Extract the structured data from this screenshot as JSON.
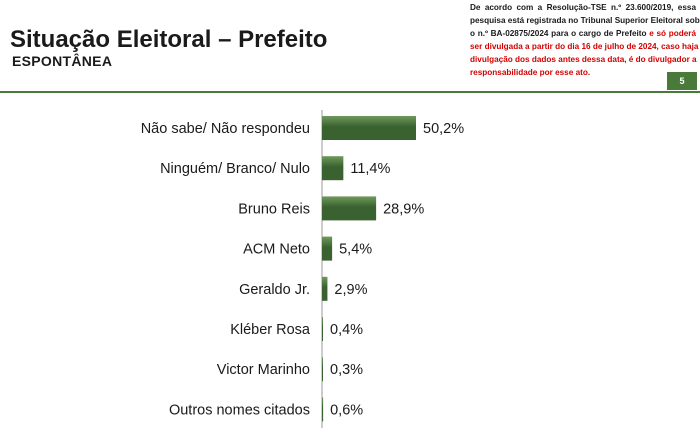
{
  "header": {
    "title": "Situação Eleitoral – Prefeito",
    "subtitle": "ESPONTÂNEA",
    "page_number": "5"
  },
  "disclaimer": {
    "lines": [
      {
        "parts": [
          {
            "text": "De acordo com a Resolução-TSE n.º 23.600/2019, essa",
            "red": false
          }
        ]
      },
      {
        "parts": [
          {
            "text": "pesquisa está registrada no Tribunal Superior Eleitoral sob",
            "red": false
          }
        ]
      },
      {
        "parts": [
          {
            "text": "o n.º BA-02875/2024 para o cargo de Prefeito ",
            "red": false
          },
          {
            "text": "e só poderá",
            "red": true
          }
        ]
      },
      {
        "parts": [
          {
            "text": "ser divulgada a partir do dia 16 de julho de 2024, caso haja",
            "red": true
          }
        ]
      },
      {
        "parts": [
          {
            "text": "divulgação dos dados antes dessa data, é do divulgador a",
            "red": true
          }
        ]
      },
      {
        "parts": [
          {
            "text": "responsabilidade por esse ato.",
            "red": true
          }
        ]
      }
    ]
  },
  "colors": {
    "bar_dark": "#3a6130",
    "bar_light": "#6f9a5c",
    "accent": "#4a7a3a",
    "disclaimer_red": "#d40000"
  },
  "chart_data": {
    "type": "bar",
    "orientation": "horizontal",
    "categories": [
      "Não sabe/ Não respondeu",
      "Ninguém/ Branco/ Nulo",
      "Bruno Reis",
      "ACM Neto",
      "Geraldo Jr.",
      "Kléber Rosa",
      "Victor Marinho",
      "Outros nomes citados"
    ],
    "values": [
      50.2,
      11.4,
      28.9,
      5.4,
      2.9,
      0.4,
      0.3,
      0.6
    ],
    "value_labels": [
      "50,2%",
      "11,4%",
      "28,9%",
      "5,4%",
      "2,9%",
      "0,4%",
      "0,3%",
      "0,6%"
    ],
    "title": "",
    "xlabel": "",
    "ylabel": "",
    "xlim": [
      0,
      100
    ],
    "grid": false,
    "legend": "none"
  }
}
